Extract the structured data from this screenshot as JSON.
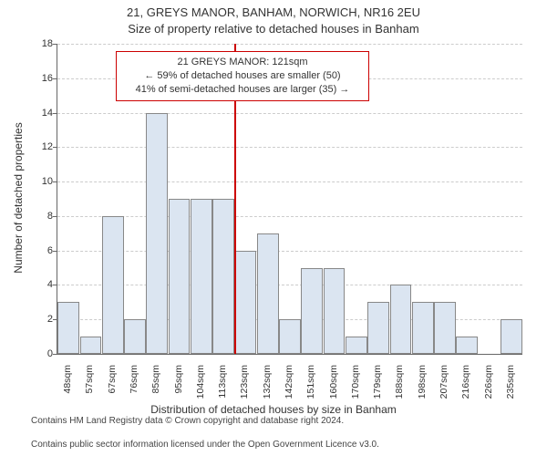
{
  "title_line1": "21, GREYS MANOR, BANHAM, NORWICH, NR16 2EU",
  "title_line2": "Size of property relative to detached houses in Banham",
  "y_axis_title": "Number of detached properties",
  "x_axis_title": "Distribution of detached houses by size in Banham",
  "chart": {
    "type": "histogram",
    "ylim": [
      0,
      18
    ],
    "ytick_step": 2,
    "grid_color": "#cccccc",
    "bar_fill": "#dbe5f1",
    "bar_border": "#888888",
    "background_color": "#ffffff",
    "x_labels": [
      "48sqm",
      "57sqm",
      "67sqm",
      "76sqm",
      "85sqm",
      "95sqm",
      "104sqm",
      "113sqm",
      "123sqm",
      "132sqm",
      "142sqm",
      "151sqm",
      "160sqm",
      "170sqm",
      "179sqm",
      "188sqm",
      "198sqm",
      "207sqm",
      "216sqm",
      "226sqm",
      "235sqm"
    ],
    "values": [
      3,
      1,
      8,
      2,
      14,
      9,
      9,
      9,
      6,
      7,
      2,
      5,
      5,
      1,
      3,
      4,
      3,
      3,
      1,
      0,
      2
    ]
  },
  "marker": {
    "position_category_index": 8,
    "color": "#cc0000"
  },
  "callout": {
    "border_color": "#cc0000",
    "line1": "21 GREYS MANOR: 121sqm",
    "line2": "← 59% of detached houses are smaller (50)",
    "line3": "41% of semi-detached houses are larger (35) →"
  },
  "attribution_line1": "Contains HM Land Registry data © Crown copyright and database right 2024.",
  "attribution_line2": "Contains public sector information licensed under the Open Government Licence v3.0."
}
